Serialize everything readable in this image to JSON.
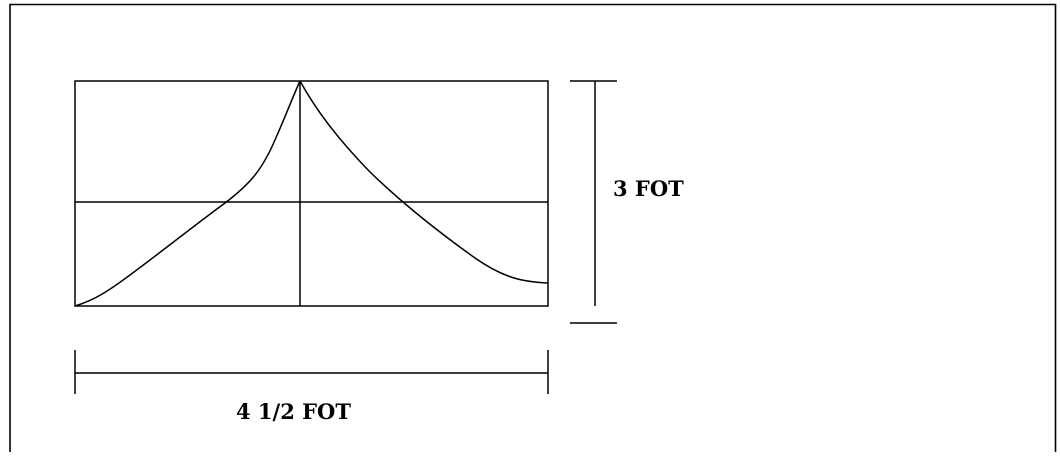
{
  "diagram": {
    "height_label": "3 FOT",
    "width_label": "4 1/2 FOT"
  },
  "colors": {
    "line": "#000000",
    "background": "#ffffff"
  }
}
